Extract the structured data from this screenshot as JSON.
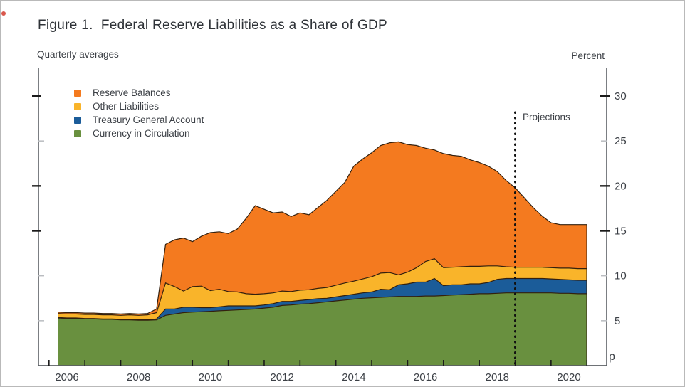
{
  "figure": {
    "title": "Figure 1.  Federal Reserve Liabilities as a Share of GDP",
    "left_header": "Quarterly averages",
    "right_header": "Percent",
    "projections_label": "Projections",
    "preliminary_marker": "p"
  },
  "colors": {
    "reserve_balances": "#f47a1f",
    "other_liabilities": "#f9b42a",
    "treasury_general_account": "#1b5c99",
    "currency_in_circulation": "#69903f",
    "band_outline": "#33200e",
    "axis_line": "#5a5e63",
    "minor_tick": "#b9bcc0",
    "major_tick": "#1a1a1a",
    "projection_line": "#111111",
    "text": "#3c4046"
  },
  "chart_data": {
    "type": "area",
    "stacked": true,
    "title": "Figure 1. Federal Reserve Liabilities as a Share of GDP",
    "subtitle": "Quarterly averages",
    "ylabel": "Percent",
    "xlabel": "",
    "grid": false,
    "legend_position": "top-left",
    "xlim": [
      2005.2,
      2021.05
    ],
    "ylim": [
      0,
      33
    ],
    "y_ticks": [
      5,
      10,
      15,
      20,
      25,
      30
    ],
    "y_major_ticks": [
      15,
      20,
      30
    ],
    "x_label_years": [
      2006,
      2008,
      2010,
      2012,
      2014,
      2016,
      2018,
      2020
    ],
    "projection_start": 2018.5,
    "x": [
      2005.75,
      2006.0,
      2006.25,
      2006.5,
      2006.75,
      2007.0,
      2007.25,
      2007.5,
      2007.75,
      2008.0,
      2008.25,
      2008.5,
      2008.75,
      2009.0,
      2009.25,
      2009.5,
      2009.75,
      2010.0,
      2010.25,
      2010.5,
      2010.75,
      2011.0,
      2011.25,
      2011.5,
      2011.75,
      2012.0,
      2012.25,
      2012.5,
      2012.75,
      2013.0,
      2013.25,
      2013.5,
      2013.75,
      2014.0,
      2014.25,
      2014.5,
      2014.75,
      2015.0,
      2015.25,
      2015.5,
      2015.75,
      2016.0,
      2016.25,
      2016.5,
      2016.75,
      2017.0,
      2017.25,
      2017.5,
      2017.75,
      2018.0,
      2018.25,
      2018.5,
      2018.75,
      2019.0,
      2019.25,
      2019.5,
      2019.75,
      2020.0,
      2020.25,
      2020.5
    ],
    "series": [
      {
        "name": "Currency in Circulation",
        "color_key": "currency_in_circulation",
        "values": [
          5.3,
          5.25,
          5.25,
          5.2,
          5.2,
          5.15,
          5.15,
          5.1,
          5.1,
          5.05,
          5.05,
          5.1,
          5.6,
          5.75,
          5.9,
          5.95,
          6.0,
          6.05,
          6.1,
          6.15,
          6.2,
          6.25,
          6.3,
          6.4,
          6.5,
          6.7,
          6.75,
          6.85,
          6.9,
          7.0,
          7.1,
          7.2,
          7.3,
          7.4,
          7.5,
          7.55,
          7.6,
          7.65,
          7.7,
          7.7,
          7.7,
          7.75,
          7.75,
          7.8,
          7.85,
          7.9,
          7.95,
          8.0,
          8.0,
          8.05,
          8.1,
          8.1,
          8.1,
          8.1,
          8.1,
          8.1,
          8.05,
          8.05,
          8.0,
          8.0
        ]
      },
      {
        "name": "Treasury General Account",
        "color_key": "treasury_general_account",
        "values": [
          0.05,
          0.05,
          0.05,
          0.05,
          0.05,
          0.05,
          0.05,
          0.05,
          0.05,
          0.05,
          0.05,
          0.1,
          0.7,
          0.55,
          0.6,
          0.55,
          0.45,
          0.4,
          0.45,
          0.5,
          0.45,
          0.4,
          0.35,
          0.35,
          0.4,
          0.45,
          0.4,
          0.4,
          0.45,
          0.45,
          0.4,
          0.45,
          0.5,
          0.55,
          0.6,
          0.65,
          0.9,
          0.8,
          1.3,
          1.4,
          1.6,
          1.55,
          1.95,
          1.1,
          1.15,
          1.1,
          1.15,
          1.1,
          1.25,
          1.55,
          1.6,
          1.6,
          1.6,
          1.6,
          1.6,
          1.55,
          1.55,
          1.5,
          1.5,
          1.5
        ]
      },
      {
        "name": "Other Liabilities",
        "color_key": "other_liabilities",
        "values": [
          0.45,
          0.45,
          0.45,
          0.45,
          0.45,
          0.45,
          0.45,
          0.45,
          0.5,
          0.5,
          0.55,
          0.7,
          2.9,
          2.5,
          1.8,
          2.3,
          2.4,
          1.9,
          1.95,
          1.6,
          1.55,
          1.35,
          1.3,
          1.25,
          1.2,
          1.15,
          1.1,
          1.15,
          1.1,
          1.15,
          1.2,
          1.3,
          1.4,
          1.45,
          1.55,
          1.7,
          1.8,
          1.9,
          1.1,
          1.3,
          1.6,
          2.3,
          2.2,
          2.0,
          1.95,
          2.0,
          1.95,
          1.95,
          1.85,
          1.5,
          1.3,
          1.25,
          1.25,
          1.25,
          1.25,
          1.25,
          1.25,
          1.3,
          1.3,
          1.3
        ]
      },
      {
        "name": "Reserve Balances",
        "color_key": "reserve_balances",
        "values": [
          0.15,
          0.15,
          0.15,
          0.15,
          0.15,
          0.15,
          0.15,
          0.15,
          0.15,
          0.15,
          0.15,
          0.4,
          4.3,
          5.2,
          5.9,
          5.0,
          5.55,
          6.45,
          6.4,
          6.45,
          7.0,
          8.4,
          9.85,
          9.4,
          8.9,
          8.8,
          8.35,
          8.6,
          8.35,
          9.0,
          9.7,
          10.45,
          11.2,
          12.8,
          13.35,
          13.8,
          14.2,
          14.45,
          14.8,
          14.2,
          13.6,
          12.6,
          12.1,
          12.7,
          12.45,
          12.3,
          11.85,
          11.55,
          11.1,
          10.5,
          9.6,
          8.85,
          7.75,
          6.65,
          5.7,
          5.0,
          4.85,
          4.85,
          4.9,
          4.9
        ]
      }
    ],
    "legend": [
      {
        "label": "Reserve Balances",
        "color_key": "reserve_balances"
      },
      {
        "label": "Other Liabilities",
        "color_key": "other_liabilities"
      },
      {
        "label": "Treasury General Account",
        "color_key": "treasury_general_account"
      },
      {
        "label": "Currency in Circulation",
        "color_key": "currency_in_circulation"
      }
    ],
    "annotations": [
      {
        "text": "Projections",
        "x": 2018.75,
        "type": "dotted-vline-label"
      },
      {
        "text": "p",
        "position": "bottom-right-outside"
      }
    ]
  }
}
